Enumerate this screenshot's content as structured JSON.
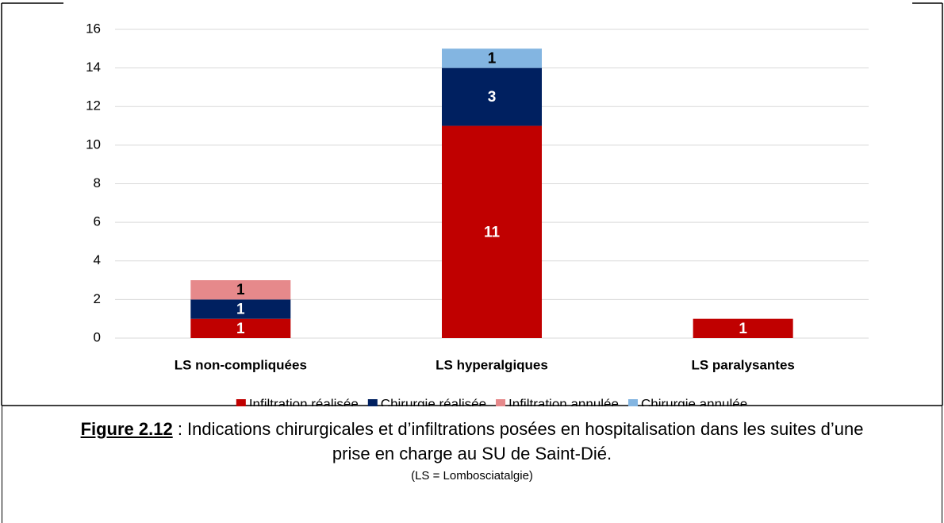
{
  "chart_data": {
    "type": "stacked_bar",
    "categories": [
      "LS non-compliquées",
      "LS hyperalgiques",
      "LS paralysantes"
    ],
    "series": [
      {
        "name": "Infiltration réalisée",
        "color": "#c00000",
        "label_color": "#ffffff",
        "values": [
          1,
          11,
          1
        ]
      },
      {
        "name": "Chirurgie réalisée",
        "color": "#002060",
        "label_color": "#ffffff",
        "values": [
          1,
          3,
          null
        ]
      },
      {
        "name": "Infiltration annulée",
        "color": "#e6898b",
        "label_color": "#000000",
        "values": [
          1,
          null,
          null
        ]
      },
      {
        "name": "Chirurgie annulée",
        "color": "#83b5e1",
        "label_color": "#000000",
        "values": [
          null,
          1,
          null
        ]
      }
    ],
    "ylim": [
      0,
      16
    ],
    "yticks": [
      0,
      2,
      4,
      6,
      8,
      10,
      12,
      14,
      16
    ],
    "grid": true,
    "legend": "bottom"
  },
  "caption": {
    "figure_label": "Figure 2.12",
    "text": " : Indications chirurgicales et d’infiltrations posées en hospitalisation dans les suites d’une prise en charge au SU de Saint-Dié.",
    "note": "(LS = Lombosciatalgie)"
  }
}
